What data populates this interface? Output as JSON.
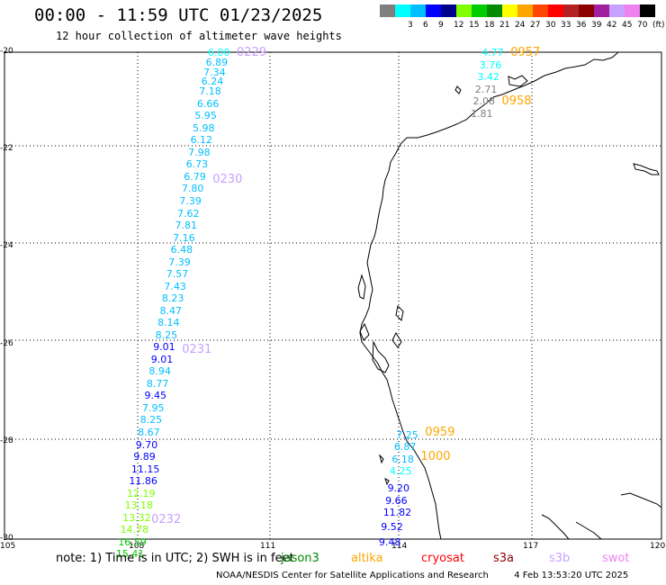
{
  "header": {
    "title": "00:00 - 11:59 UTC 01/23/2025",
    "subtitle": "12 hour collection of altimeter wave heights"
  },
  "legend": {
    "swatches": [
      {
        "label": "",
        "color": "#7f7f7f"
      },
      {
        "label": "3",
        "color": "#00ffff"
      },
      {
        "label": "6",
        "color": "#00bfff"
      },
      {
        "label": "9",
        "color": "#0000ff"
      },
      {
        "label": "12",
        "color": "#00008b"
      },
      {
        "label": "15",
        "color": "#7fff00"
      },
      {
        "label": "18",
        "color": "#00cc00"
      },
      {
        "label": "21",
        "color": "#008b00"
      },
      {
        "label": "24",
        "color": "#ffff00"
      },
      {
        "label": "27",
        "color": "#ffa500"
      },
      {
        "label": "30",
        "color": "#ff4500"
      },
      {
        "label": "33",
        "color": "#ff0000"
      },
      {
        "label": "36",
        "color": "#b22222"
      },
      {
        "label": "39",
        "color": "#8b0000"
      },
      {
        "label": "42",
        "color": "#a020a0"
      },
      {
        "label": "45",
        "color": "#c8a0ff"
      },
      {
        "label": "70",
        "color": "#ee82ee"
      },
      {
        "label": "(ft)",
        "color": "#000000"
      }
    ]
  },
  "axes": {
    "lat_labels": [
      "-20",
      "-22",
      "-24",
      "-26",
      "-28",
      "-30"
    ],
    "lon_labels": [
      "105",
      "108",
      "111",
      "114",
      "117",
      "120"
    ]
  },
  "tracks": [
    {
      "id": "track-a",
      "time_labels": [
        {
          "text": "0229",
          "color": "#c8a0ff",
          "lat": -20.0
        },
        {
          "text": "0230",
          "color": "#c8a0ff",
          "lat": -22.6
        },
        {
          "text": "0231",
          "color": "#c8a0ff",
          "lat": -26.1
        },
        {
          "text": "0232",
          "color": "#c8a0ff",
          "lat": -29.6
        }
      ],
      "values": [
        {
          "v": "6.00",
          "lat": -20.0,
          "lon": 109.85,
          "color": "#00ffff"
        },
        {
          "v": "6.89",
          "lat": -20.2,
          "lon": 109.8,
          "color": "#00bfff"
        },
        {
          "v": "7.34",
          "lat": -20.4,
          "lon": 109.75,
          "color": "#00bfff"
        },
        {
          "v": "6.24",
          "lat": -20.6,
          "lon": 109.7,
          "color": "#00bfff"
        },
        {
          "v": "7.18",
          "lat": -20.8,
          "lon": 109.65,
          "color": "#00bfff"
        },
        {
          "v": "6.66",
          "lat": -21.05,
          "lon": 109.6,
          "color": "#00bfff"
        },
        {
          "v": "5.95",
          "lat": -21.3,
          "lon": 109.55,
          "color": "#00bfff"
        },
        {
          "v": "5.98",
          "lat": -21.55,
          "lon": 109.5,
          "color": "#00bfff"
        },
        {
          "v": "6.12",
          "lat": -21.8,
          "lon": 109.45,
          "color": "#00bfff"
        },
        {
          "v": "7.98",
          "lat": -22.05,
          "lon": 109.4,
          "color": "#00bfff"
        },
        {
          "v": "6.73",
          "lat": -22.3,
          "lon": 109.35,
          "color": "#00bfff"
        },
        {
          "v": "6.79",
          "lat": -22.55,
          "lon": 109.3,
          "color": "#00bfff"
        },
        {
          "v": "7.80",
          "lat": -22.8,
          "lon": 109.25,
          "color": "#00bfff"
        },
        {
          "v": "7.39",
          "lat": -23.05,
          "lon": 109.2,
          "color": "#00bfff"
        },
        {
          "v": "7.62",
          "lat": -23.3,
          "lon": 109.15,
          "color": "#00bfff"
        },
        {
          "v": "7.81",
          "lat": -23.55,
          "lon": 109.1,
          "color": "#00bfff"
        },
        {
          "v": "7.16",
          "lat": -23.8,
          "lon": 109.05,
          "color": "#00bfff"
        },
        {
          "v": "6.48",
          "lat": -24.05,
          "lon": 109.0,
          "color": "#00bfff"
        },
        {
          "v": "7.39",
          "lat": -24.3,
          "lon": 108.95,
          "color": "#00bfff"
        },
        {
          "v": "7.57",
          "lat": -24.55,
          "lon": 108.9,
          "color": "#00bfff"
        },
        {
          "v": "7.43",
          "lat": -24.8,
          "lon": 108.85,
          "color": "#00bfff"
        },
        {
          "v": "8.23",
          "lat": -25.05,
          "lon": 108.8,
          "color": "#00bfff"
        },
        {
          "v": "8.47",
          "lat": -25.3,
          "lon": 108.75,
          "color": "#00bfff"
        },
        {
          "v": "8.14",
          "lat": -25.55,
          "lon": 108.7,
          "color": "#00bfff"
        },
        {
          "v": "8.25",
          "lat": -25.8,
          "lon": 108.65,
          "color": "#00bfff"
        },
        {
          "v": "9.01",
          "lat": -26.05,
          "lon": 108.6,
          "color": "#0000ff"
        },
        {
          "v": "9.01",
          "lat": -26.3,
          "lon": 108.55,
          "color": "#0000ff"
        },
        {
          "v": "8.94",
          "lat": -26.55,
          "lon": 108.5,
          "color": "#00bfff"
        },
        {
          "v": "8.77",
          "lat": -26.8,
          "lon": 108.45,
          "color": "#00bfff"
        },
        {
          "v": "9.45",
          "lat": -27.05,
          "lon": 108.4,
          "color": "#0000ff"
        },
        {
          "v": "7.95",
          "lat": -27.3,
          "lon": 108.35,
          "color": "#00bfff"
        },
        {
          "v": "8.25",
          "lat": -27.55,
          "lon": 108.3,
          "color": "#00bfff"
        },
        {
          "v": "8.67",
          "lat": -27.8,
          "lon": 108.25,
          "color": "#00bfff"
        },
        {
          "v": "9.70",
          "lat": -28.05,
          "lon": 108.2,
          "color": "#0000ff"
        },
        {
          "v": "9.89",
          "lat": -28.3,
          "lon": 108.15,
          "color": "#0000ff"
        },
        {
          "v": "11.15",
          "lat": -28.55,
          "lon": 108.1,
          "color": "#0000ff"
        },
        {
          "v": "11.86",
          "lat": -28.8,
          "lon": 108.05,
          "color": "#0000ff"
        },
        {
          "v": "12.19",
          "lat": -29.05,
          "lon": 108.0,
          "color": "#7fff00"
        },
        {
          "v": "13.18",
          "lat": -29.3,
          "lon": 107.95,
          "color": "#7fff00"
        },
        {
          "v": "13.32",
          "lat": -29.55,
          "lon": 107.9,
          "color": "#7fff00"
        },
        {
          "v": "14.78",
          "lat": -29.8,
          "lon": 107.85,
          "color": "#7fff00"
        },
        {
          "v": "16.59",
          "lat": -30.05,
          "lon": 107.8,
          "color": "#00cc00"
        },
        {
          "v": "15.41",
          "lat": -30.3,
          "lon": 107.75,
          "color": "#00cc00"
        }
      ]
    },
    {
      "id": "track-b",
      "time_labels": [
        {
          "text": "0957",
          "color": "#ffa500",
          "lat": -20.0
        },
        {
          "text": "0958",
          "color": "#ffa500",
          "lat": -21.0
        }
      ],
      "values": [
        {
          "v": "4.77",
          "lat": -20.0,
          "lon": 116.1,
          "color": "#00ffff"
        },
        {
          "v": "3.76",
          "lat": -20.25,
          "lon": 116.05,
          "color": "#00ffff"
        },
        {
          "v": "3.42",
          "lat": -20.5,
          "lon": 116.0,
          "color": "#00ffff"
        },
        {
          "v": "2.71",
          "lat": -20.75,
          "lon": 115.95,
          "color": "#7f7f7f"
        },
        {
          "v": "2.08",
          "lat": -21.0,
          "lon": 115.9,
          "color": "#7f7f7f"
        },
        {
          "v": "1.81",
          "lat": -21.25,
          "lon": 115.85,
          "color": "#7f7f7f"
        }
      ]
    },
    {
      "id": "track-c",
      "time_labels": [
        {
          "text": "0959",
          "color": "#ffa500",
          "lat": -27.8
        },
        {
          "text": "1000",
          "color": "#ffa500",
          "lat": -28.3
        }
      ],
      "values": [
        {
          "v": "7.25",
          "lat": -27.85,
          "lon": 114.15,
          "color": "#00bfff"
        },
        {
          "v": "6.87",
          "lat": -28.1,
          "lon": 114.1,
          "color": "#00bfff"
        },
        {
          "v": "6.18",
          "lat": -28.35,
          "lon": 114.05,
          "color": "#00bfff"
        },
        {
          "v": "4.25",
          "lat": -28.6,
          "lon": 114.0,
          "color": "#00ffff"
        },
        {
          "v": "9.20",
          "lat": -28.95,
          "lon": 113.95,
          "color": "#0000ff"
        },
        {
          "v": "9.66",
          "lat": -29.2,
          "lon": 113.9,
          "color": "#0000ff"
        },
        {
          "v": "11.82",
          "lat": -29.45,
          "lon": 113.85,
          "color": "#0000ff"
        },
        {
          "v": "9.52",
          "lat": -29.75,
          "lon": 113.8,
          "color": "#0000ff"
        },
        {
          "v": "9.48",
          "lat": -30.05,
          "lon": 113.75,
          "color": "#0000ff"
        }
      ]
    }
  ],
  "note": {
    "text": "note: 1) Time is in UTC; 2) SWH is in feet",
    "satellites": [
      {
        "name": "jason3",
        "color": "#008b00"
      },
      {
        "name": "altika",
        "color": "#ffa500"
      },
      {
        "name": "cryosat",
        "color": "#ff0000"
      },
      {
        "name": "s3a",
        "color": "#8b0000"
      },
      {
        "name": "s3b",
        "color": "#c8a0ff"
      },
      {
        "name": "swot",
        "color": "#ee82ee"
      }
    ]
  },
  "footer": {
    "credit": "NOAA/NESDIS Center for Satellite Applications and Research",
    "timestamp": "4 Feb 13:53:20 UTC 2025"
  }
}
